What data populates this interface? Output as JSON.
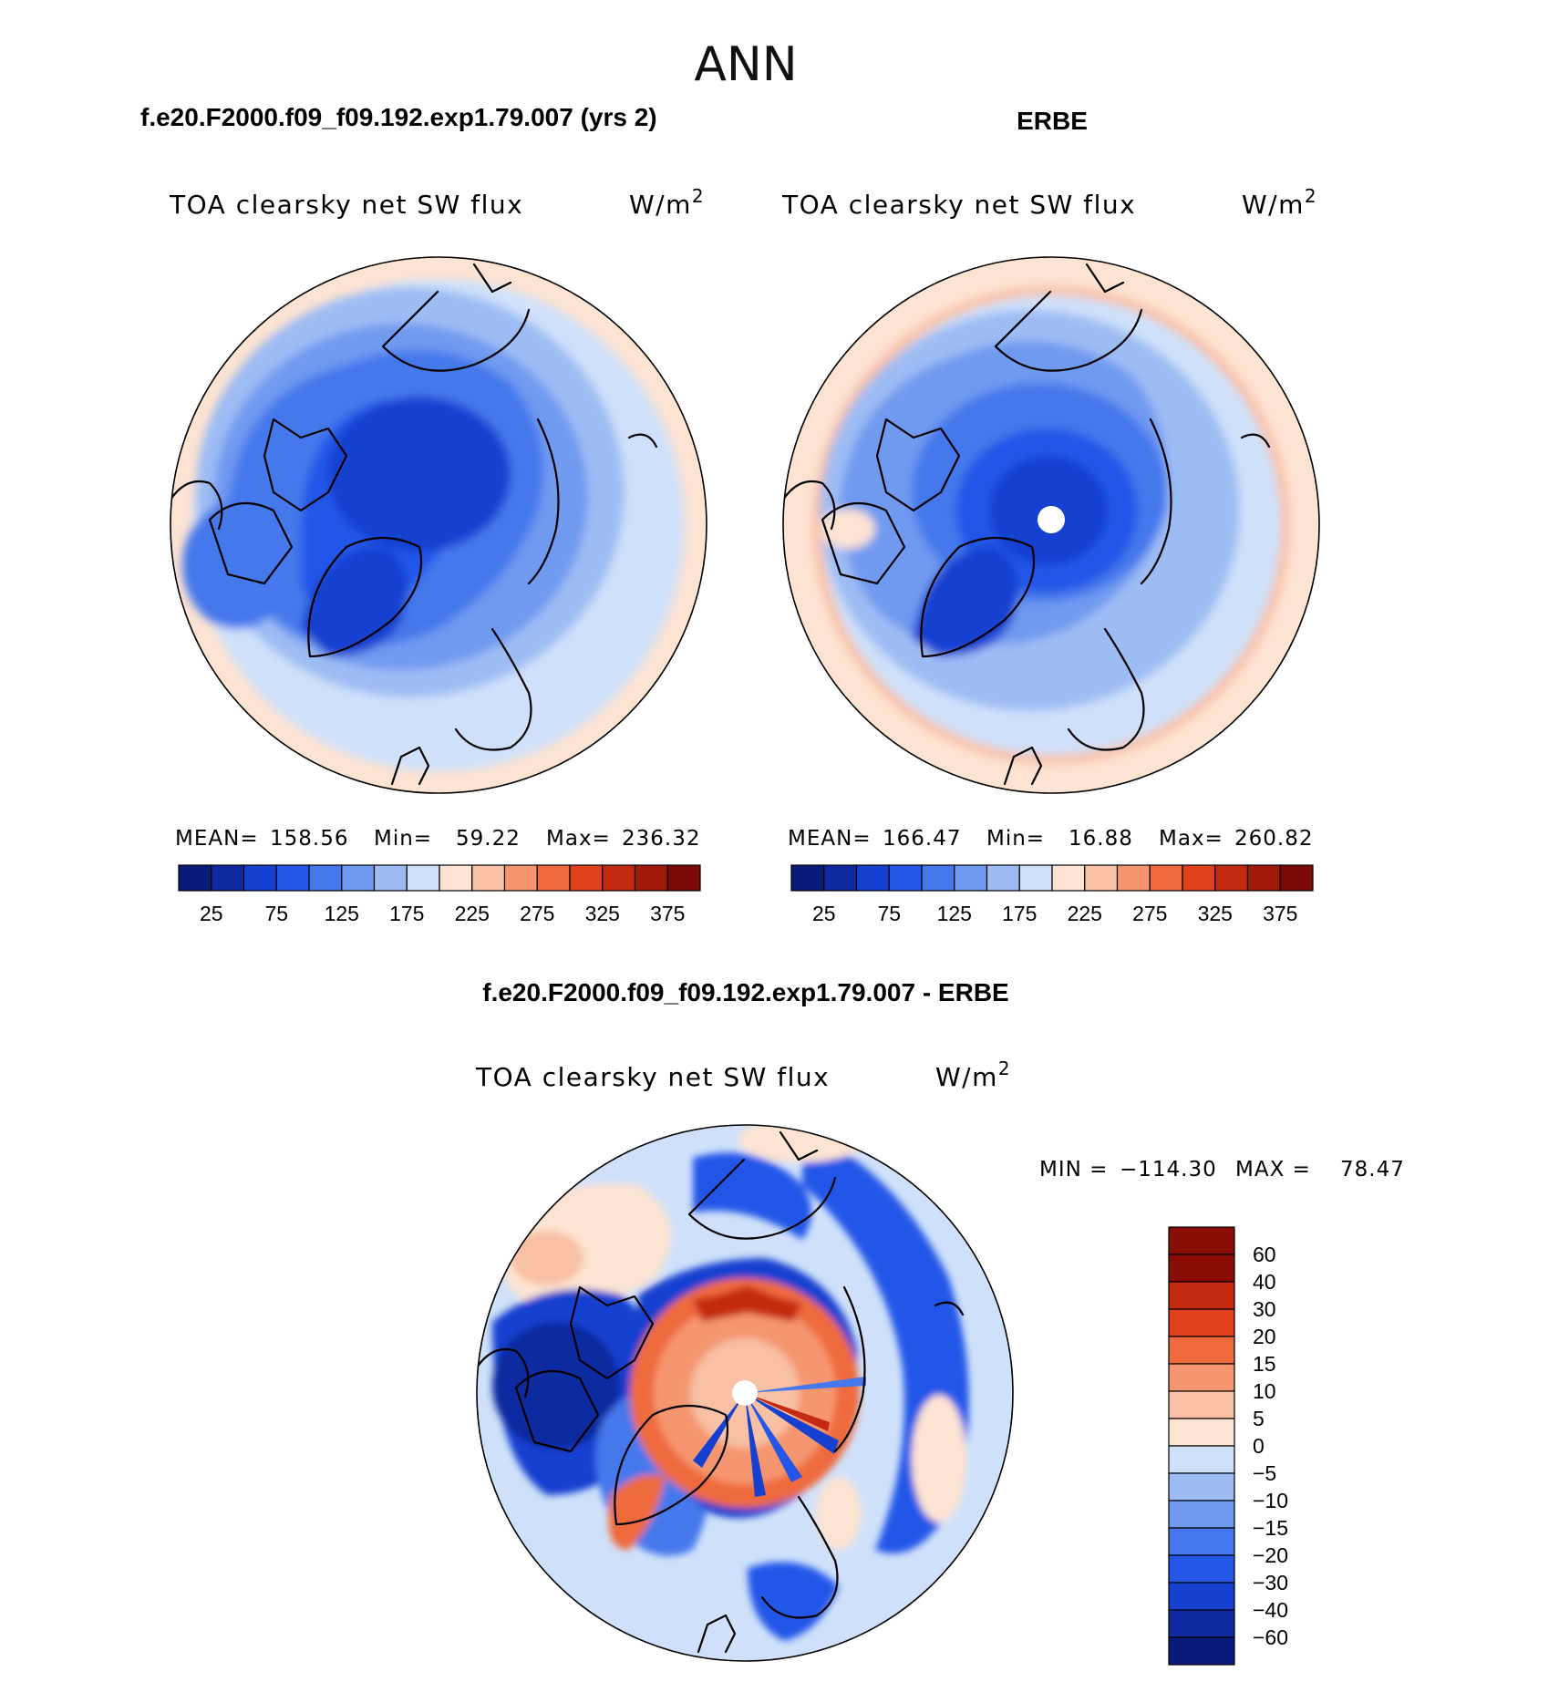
{
  "page_title": "ANN",
  "colors": {
    "abs_levels": [
      "#0a1a7a",
      "#0f2aa0",
      "#1540d0",
      "#2456e8",
      "#4578ec",
      "#6f9af0",
      "#9ebcf4",
      "#cfe1fa",
      "#fde3d2",
      "#f8c0a4",
      "#f59670",
      "#ef6a3c",
      "#e0401a",
      "#c42a0f",
      "#a01a0a",
      "#7a0a05"
    ],
    "diff_levels": [
      "#0a1a7a",
      "#0f2aa0",
      "#1540d0",
      "#2456e8",
      "#4578ec",
      "#6f9af0",
      "#9ebcf4",
      "#cfe1fa",
      "#fde3d2",
      "#f8c0a4",
      "#f59670",
      "#ef6a3c",
      "#e0401a",
      "#c42a0f",
      "#8a0d05"
    ],
    "coast": "#000000",
    "pole_hole": "#ffffff"
  },
  "panels": {
    "model": {
      "case_title": "f.e20.F2000.f09_f09.192.exp1.79.007 (yrs 2)",
      "variable": "TOA clearsky net SW flux",
      "units": "W/m",
      "units_sup": "2",
      "stats": {
        "mean_label": "MEAN=",
        "mean": "158.56",
        "min_label": "Min=",
        "min": "59.22",
        "max_label": "Max=",
        "max": "236.32"
      }
    },
    "obs": {
      "case_title": "ERBE",
      "variable": "TOA clearsky net SW flux",
      "units": "W/m",
      "units_sup": "2",
      "stats": {
        "mean_label": "MEAN=",
        "mean": "166.47",
        "min_label": "Min=",
        "min": "16.88",
        "max_label": "Max=",
        "max": "260.82"
      }
    },
    "diff": {
      "case_title": "f.e20.F2000.f09_f09.192.exp1.79.007 - ERBE",
      "variable": "TOA clearsky net SW flux",
      "units": "W/m",
      "units_sup": "2",
      "minmax": {
        "min_label": "MIN =",
        "min": "−114.30",
        "max_label": "MAX =",
        "max": "78.47"
      }
    }
  },
  "chart_data": [
    {
      "type": "heatmap",
      "title": "f.e20.F2000.f09_f09.192.exp1.79.007 (yrs 2)",
      "subtitle": "TOA clearsky net SW flux",
      "units": "W/m2",
      "projection": "north polar stereographic",
      "colorbar_labels": [
        "25",
        "75",
        "125",
        "175",
        "225",
        "275",
        "325",
        "375"
      ],
      "colorbar_levels": 16,
      "mean": 158.56,
      "min": 59.22,
      "max": 236.32
    },
    {
      "type": "heatmap",
      "title": "ERBE",
      "subtitle": "TOA clearsky net SW flux",
      "units": "W/m2",
      "projection": "north polar stereographic",
      "colorbar_labels": [
        "25",
        "75",
        "125",
        "175",
        "225",
        "275",
        "325",
        "375"
      ],
      "colorbar_levels": 16,
      "mean": 166.47,
      "min": 16.88,
      "max": 260.82
    },
    {
      "type": "heatmap",
      "title": "f.e20.F2000.f09_f09.192.exp1.79.007 - ERBE",
      "subtitle": "TOA clearsky net SW flux",
      "units": "W/m2",
      "projection": "north polar stereographic",
      "colorbar_labels": [
        "60",
        "40",
        "30",
        "20",
        "15",
        "10",
        "5",
        "0",
        "−5",
        "−10",
        "−15",
        "−20",
        "−30",
        "−40",
        "−60"
      ],
      "min": -114.3,
      "max": 78.47
    }
  ]
}
